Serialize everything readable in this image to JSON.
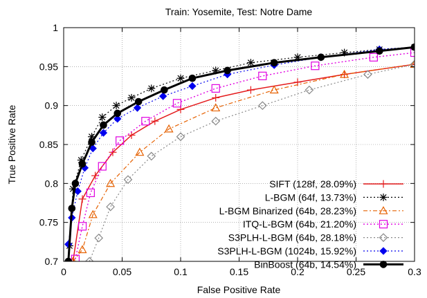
{
  "chart_data": {
    "type": "line",
    "title": "Train: Yosemite, Test: Notre Dame",
    "xlabel": "False Positive Rate",
    "ylabel": "True Positive Rate",
    "xlim": [
      0,
      0.3
    ],
    "ylim": [
      0.7,
      1
    ],
    "xticks": [
      0,
      0.05,
      0.1,
      0.15,
      0.2,
      0.25,
      0.3
    ],
    "xtick_labels": [
      "0",
      "0.05",
      "0.1",
      "0.15",
      "0.2",
      "0.25",
      "0.3"
    ],
    "yticks": [
      0.7,
      0.75,
      0.8,
      0.85,
      0.9,
      0.95,
      1
    ],
    "ytick_labels": [
      "0.7",
      "0.75",
      "0.8",
      "0.85",
      "0.9",
      "0.95",
      "1"
    ],
    "grid": true,
    "legend_position": "bottom-right",
    "series": [
      {
        "name": "SIFT (128f, 28.09%)",
        "color": "#e41a1c",
        "marker": "plus",
        "dash": "solid",
        "width": 1.5,
        "x": [
          0.008,
          0.016,
          0.027,
          0.042,
          0.058,
          0.078,
          0.1,
          0.13,
          0.16,
          0.2,
          0.24,
          0.3
        ],
        "y": [
          0.7,
          0.78,
          0.81,
          0.84,
          0.862,
          0.88,
          0.895,
          0.91,
          0.92,
          0.93,
          0.94,
          0.953
        ]
      },
      {
        "name": "L-BGM (64f, 13.73%)",
        "color": "#000000",
        "marker": "star",
        "dash": "dotted",
        "width": 1.2,
        "x": [
          0.005,
          0.008,
          0.015,
          0.024,
          0.033,
          0.045,
          0.058,
          0.075,
          0.1,
          0.13,
          0.16,
          0.2,
          0.24,
          0.27,
          0.3
        ],
        "y": [
          0.72,
          0.793,
          0.83,
          0.86,
          0.885,
          0.9,
          0.91,
          0.922,
          0.935,
          0.945,
          0.955,
          0.962,
          0.968,
          0.972,
          0.975
        ]
      },
      {
        "name": "L-BGM Binarized (64b, 28.23%)",
        "color": "#e66101",
        "marker": "triangle",
        "dash": "dashdot",
        "width": 1.2,
        "x": [
          0.008,
          0.016,
          0.025,
          0.04,
          0.065,
          0.09,
          0.13,
          0.18,
          0.24,
          0.3
        ],
        "y": [
          0.7,
          0.715,
          0.76,
          0.8,
          0.84,
          0.87,
          0.897,
          0.92,
          0.94,
          0.953
        ]
      },
      {
        "name": "ITQ-L-BGM (64b, 21.20%)",
        "color": "#e000e0",
        "marker": "square",
        "dash": "dotted",
        "width": 1.4,
        "x": [
          0.01,
          0.016,
          0.023,
          0.033,
          0.048,
          0.07,
          0.097,
          0.13,
          0.17,
          0.215,
          0.265,
          0.3
        ],
        "y": [
          0.703,
          0.745,
          0.788,
          0.822,
          0.855,
          0.88,
          0.903,
          0.922,
          0.938,
          0.951,
          0.962,
          0.968
        ]
      },
      {
        "name": "S3PLH-L-BGM (64b, 28.18%)",
        "color": "#888888",
        "marker": "diamond",
        "dash": "dotted",
        "width": 1.2,
        "x": [
          0.022,
          0.03,
          0.04,
          0.055,
          0.075,
          0.1,
          0.13,
          0.17,
          0.21,
          0.26,
          0.3
        ],
        "y": [
          0.7,
          0.73,
          0.77,
          0.805,
          0.835,
          0.86,
          0.88,
          0.9,
          0.92,
          0.94,
          0.953
        ]
      },
      {
        "name": "S3PLH-L-BGM (1024b, 15.92%)",
        "color": "#0000ee",
        "marker": "filled-diamond",
        "dash": "dotted",
        "width": 1.2,
        "x": [
          0.004,
          0.007,
          0.012,
          0.018,
          0.025,
          0.034,
          0.046,
          0.063,
          0.085,
          0.11,
          0.14,
          0.18,
          0.22,
          0.27,
          0.3
        ],
        "y": [
          0.722,
          0.756,
          0.79,
          0.82,
          0.845,
          0.865,
          0.883,
          0.897,
          0.912,
          0.925,
          0.94,
          0.952,
          0.962,
          0.972,
          0.975
        ]
      },
      {
        "name": "BinBoost (64b, 14.54%)",
        "color": "#000000",
        "marker": "circle",
        "dash": "solid",
        "width": 3,
        "x": [
          0.004,
          0.007,
          0.01,
          0.016,
          0.024,
          0.034,
          0.046,
          0.064,
          0.086,
          0.11,
          0.14,
          0.18,
          0.22,
          0.27,
          0.3
        ],
        "y": [
          0.7,
          0.768,
          0.8,
          0.825,
          0.853,
          0.875,
          0.89,
          0.905,
          0.92,
          0.935,
          0.945,
          0.955,
          0.962,
          0.97,
          0.975
        ]
      }
    ]
  }
}
